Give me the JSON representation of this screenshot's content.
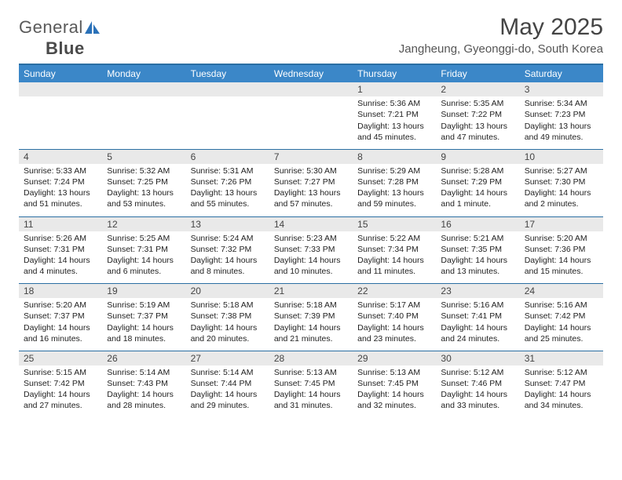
{
  "logo": {
    "textThin": "General",
    "textBold": "Blue"
  },
  "title": "May 2025",
  "location": "Jangheung, Gyeonggi-do, South Korea",
  "colors": {
    "headerBar": "#3b87c8",
    "ruleLine": "#2b6fa3",
    "dayShade": "#e9e9e9",
    "logoAccent": "#2a71b8"
  },
  "dow": [
    "Sunday",
    "Monday",
    "Tuesday",
    "Wednesday",
    "Thursday",
    "Friday",
    "Saturday"
  ],
  "weeks": [
    [
      null,
      null,
      null,
      null,
      {
        "d": "1",
        "sr": "5:36 AM",
        "ss": "7:21 PM",
        "dl": "13 hours and 45 minutes."
      },
      {
        "d": "2",
        "sr": "5:35 AM",
        "ss": "7:22 PM",
        "dl": "13 hours and 47 minutes."
      },
      {
        "d": "3",
        "sr": "5:34 AM",
        "ss": "7:23 PM",
        "dl": "13 hours and 49 minutes."
      }
    ],
    [
      {
        "d": "4",
        "sr": "5:33 AM",
        "ss": "7:24 PM",
        "dl": "13 hours and 51 minutes."
      },
      {
        "d": "5",
        "sr": "5:32 AM",
        "ss": "7:25 PM",
        "dl": "13 hours and 53 minutes."
      },
      {
        "d": "6",
        "sr": "5:31 AM",
        "ss": "7:26 PM",
        "dl": "13 hours and 55 minutes."
      },
      {
        "d": "7",
        "sr": "5:30 AM",
        "ss": "7:27 PM",
        "dl": "13 hours and 57 minutes."
      },
      {
        "d": "8",
        "sr": "5:29 AM",
        "ss": "7:28 PM",
        "dl": "13 hours and 59 minutes."
      },
      {
        "d": "9",
        "sr": "5:28 AM",
        "ss": "7:29 PM",
        "dl": "14 hours and 1 minute."
      },
      {
        "d": "10",
        "sr": "5:27 AM",
        "ss": "7:30 PM",
        "dl": "14 hours and 2 minutes."
      }
    ],
    [
      {
        "d": "11",
        "sr": "5:26 AM",
        "ss": "7:31 PM",
        "dl": "14 hours and 4 minutes."
      },
      {
        "d": "12",
        "sr": "5:25 AM",
        "ss": "7:31 PM",
        "dl": "14 hours and 6 minutes."
      },
      {
        "d": "13",
        "sr": "5:24 AM",
        "ss": "7:32 PM",
        "dl": "14 hours and 8 minutes."
      },
      {
        "d": "14",
        "sr": "5:23 AM",
        "ss": "7:33 PM",
        "dl": "14 hours and 10 minutes."
      },
      {
        "d": "15",
        "sr": "5:22 AM",
        "ss": "7:34 PM",
        "dl": "14 hours and 11 minutes."
      },
      {
        "d": "16",
        "sr": "5:21 AM",
        "ss": "7:35 PM",
        "dl": "14 hours and 13 minutes."
      },
      {
        "d": "17",
        "sr": "5:20 AM",
        "ss": "7:36 PM",
        "dl": "14 hours and 15 minutes."
      }
    ],
    [
      {
        "d": "18",
        "sr": "5:20 AM",
        "ss": "7:37 PM",
        "dl": "14 hours and 16 minutes."
      },
      {
        "d": "19",
        "sr": "5:19 AM",
        "ss": "7:37 PM",
        "dl": "14 hours and 18 minutes."
      },
      {
        "d": "20",
        "sr": "5:18 AM",
        "ss": "7:38 PM",
        "dl": "14 hours and 20 minutes."
      },
      {
        "d": "21",
        "sr": "5:18 AM",
        "ss": "7:39 PM",
        "dl": "14 hours and 21 minutes."
      },
      {
        "d": "22",
        "sr": "5:17 AM",
        "ss": "7:40 PM",
        "dl": "14 hours and 23 minutes."
      },
      {
        "d": "23",
        "sr": "5:16 AM",
        "ss": "7:41 PM",
        "dl": "14 hours and 24 minutes."
      },
      {
        "d": "24",
        "sr": "5:16 AM",
        "ss": "7:42 PM",
        "dl": "14 hours and 25 minutes."
      }
    ],
    [
      {
        "d": "25",
        "sr": "5:15 AM",
        "ss": "7:42 PM",
        "dl": "14 hours and 27 minutes."
      },
      {
        "d": "26",
        "sr": "5:14 AM",
        "ss": "7:43 PM",
        "dl": "14 hours and 28 minutes."
      },
      {
        "d": "27",
        "sr": "5:14 AM",
        "ss": "7:44 PM",
        "dl": "14 hours and 29 minutes."
      },
      {
        "d": "28",
        "sr": "5:13 AM",
        "ss": "7:45 PM",
        "dl": "14 hours and 31 minutes."
      },
      {
        "d": "29",
        "sr": "5:13 AM",
        "ss": "7:45 PM",
        "dl": "14 hours and 32 minutes."
      },
      {
        "d": "30",
        "sr": "5:12 AM",
        "ss": "7:46 PM",
        "dl": "14 hours and 33 minutes."
      },
      {
        "d": "31",
        "sr": "5:12 AM",
        "ss": "7:47 PM",
        "dl": "14 hours and 34 minutes."
      }
    ]
  ],
  "labels": {
    "sunrise": "Sunrise: ",
    "sunset": "Sunset: ",
    "daylight": "Daylight: "
  }
}
